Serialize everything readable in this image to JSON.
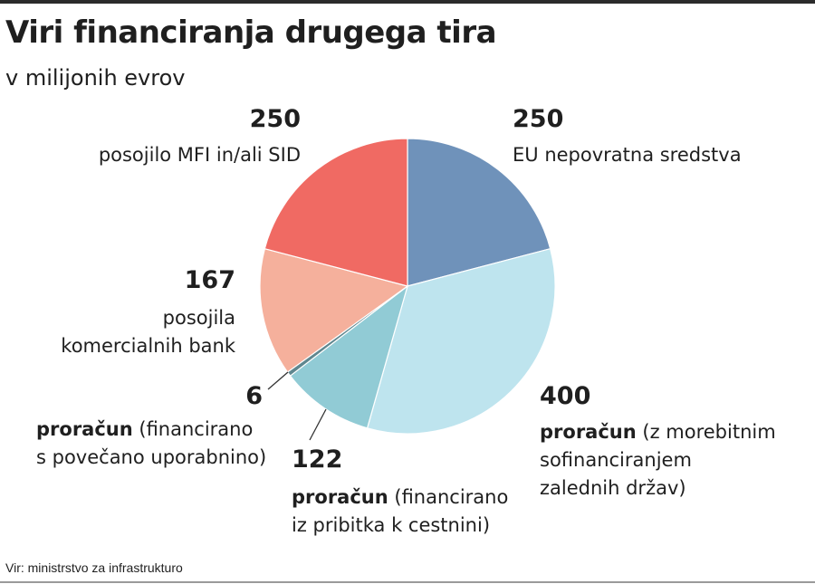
{
  "title": "Viri financiranja drugega tira",
  "subtitle": "v milijonih evrov",
  "source": "Vir: ministrstvo za infrastrukturo",
  "chart_data": {
    "type": "pie",
    "title": "Viri financiranja drugega tira",
    "subtitle": "v milijonih evrov",
    "unit": "v milijonih evrov",
    "slices": [
      {
        "value": 250,
        "value_label": "250",
        "label_lines": [
          "EU nepovratna sredstva"
        ],
        "color": "#6f92ba"
      },
      {
        "value": 400,
        "value_label": "400",
        "label_lines": [
          "proračun (z morebitnim",
          "sofinanciranjem",
          "zalednih držav)"
        ],
        "color": "#bee4ee"
      },
      {
        "value": 122,
        "value_label": "122",
        "label_lines": [
          "proračun (financirano",
          "iz pribitka k cestnini)"
        ],
        "color": "#91cbd5"
      },
      {
        "value": 6,
        "value_label": "6",
        "label_lines": [
          "proračun (financirano",
          "s povečano uporabnino)"
        ],
        "color": "#5f878f"
      },
      {
        "value": 167,
        "value_label": "167",
        "label_lines": [
          "posojila",
          "komercialnih bank"
        ],
        "color": "#f5b09c"
      },
      {
        "value": 250,
        "value_label": "250",
        "label_lines": [
          "posojilo MFI in/ali SID"
        ],
        "color": "#f06a63"
      }
    ]
  }
}
